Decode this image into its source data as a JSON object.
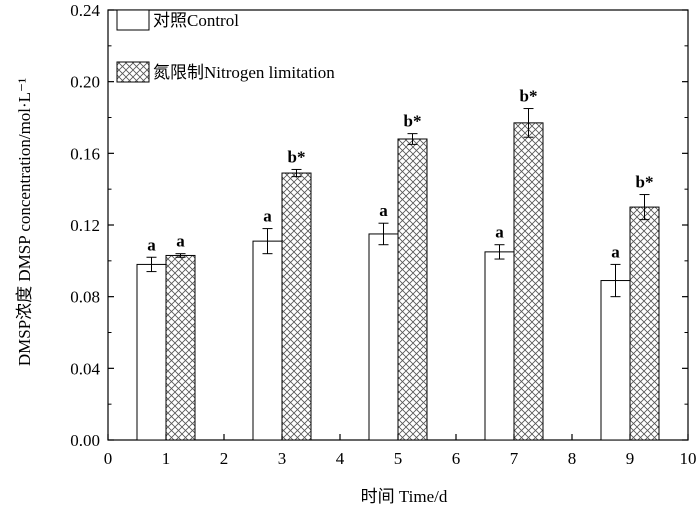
{
  "chart_data": {
    "type": "bar",
    "xlabel": "时间 Time/d",
    "ylabel": "DMSP浓度 DMSP concentration/mol·L⁻¹",
    "xlim": [
      0,
      10
    ],
    "ylim": [
      0,
      0.24
    ],
    "xticks": [
      0,
      1,
      2,
      3,
      4,
      5,
      6,
      7,
      8,
      9,
      10
    ],
    "yticks": [
      0.0,
      0.04,
      0.08,
      0.12,
      0.16,
      0.2,
      0.24
    ],
    "bar_width": 1.0,
    "legend_position": "top-left",
    "series": [
      {
        "name": "对照Control",
        "fill": "white",
        "x": [
          1,
          3,
          5,
          7,
          9
        ],
        "values": [
          0.098,
          0.111,
          0.115,
          0.105,
          0.089
        ],
        "errors": [
          0.004,
          0.007,
          0.006,
          0.004,
          0.009
        ],
        "labels": [
          "a",
          "a",
          "a",
          "a",
          "a"
        ]
      },
      {
        "name": "氮限制Nitrogen limitation",
        "fill": "crosshatch",
        "x": [
          1,
          3,
          5,
          7,
          9
        ],
        "values": [
          0.103,
          0.149,
          0.168,
          0.177,
          0.13
        ],
        "errors": [
          0.001,
          0.002,
          0.003,
          0.008,
          0.007
        ],
        "labels": [
          "a",
          "b*",
          "b*",
          "b*",
          "b*"
        ]
      }
    ]
  }
}
